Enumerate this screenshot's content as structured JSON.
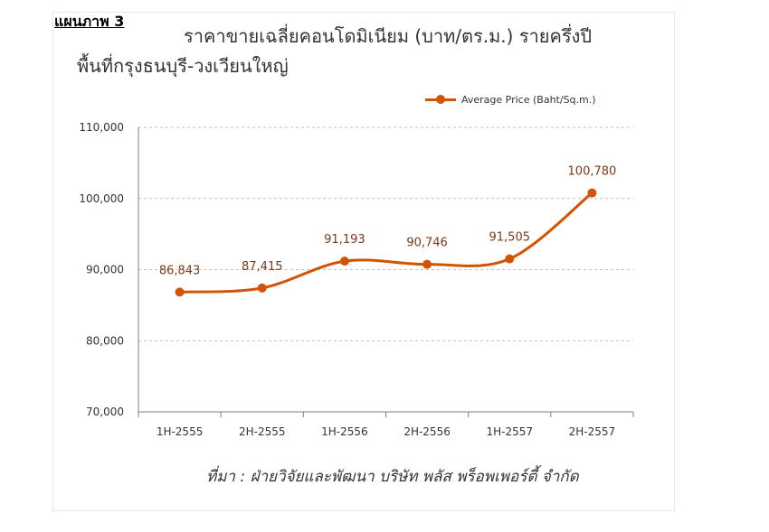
{
  "figure_label": "แผนภาพ 3",
  "chart_data": {
    "type": "line",
    "title": "ราคาขายเฉลี่ยคอนโดมิเนียม (บาท/ตร.ม.) รายครึ่งปี",
    "subtitle": "พื้นที่กรุงธนบุรี-วงเวียนใหญ่",
    "categories": [
      "1H-2555",
      "2H-2555",
      "1H-2556",
      "2H-2556",
      "1H-2557",
      "2H-2557"
    ],
    "series": [
      {
        "name": "Average Price (Baht/Sq.m.)",
        "values": [
          86843,
          87415,
          91193,
          90746,
          91505,
          100780
        ],
        "labels": [
          "86,843",
          "87,415",
          "91,193",
          "90,746",
          "91,505",
          "100,780"
        ],
        "color": "#d35400"
      }
    ],
    "ylim": [
      70000,
      110000
    ],
    "yticks": [
      70000,
      80000,
      90000,
      100000,
      110000
    ],
    "ytick_labels": [
      "70,000",
      "80,000",
      "90,000",
      "100,000",
      "110,000"
    ],
    "grid": "horizontal dashed",
    "legend_position": "top-right",
    "xlabel": "",
    "ylabel": "",
    "source": "ที่มา : ฝ่ายวิจัยและพัฒนา บริษัท พลัส พร็อพเพอร์ตี้ จำกัด"
  }
}
